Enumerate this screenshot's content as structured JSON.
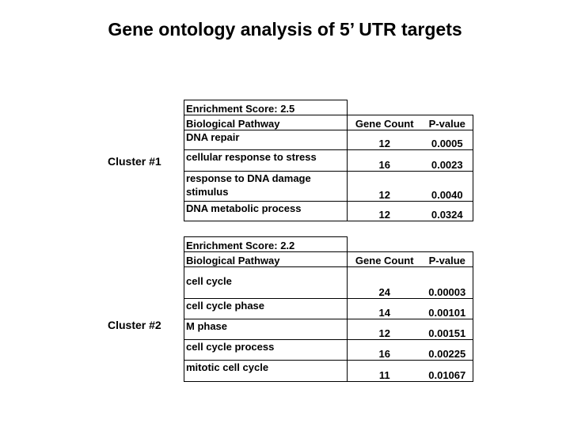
{
  "title": "Gene ontology analysis of 5’ UTR targets",
  "headers": {
    "pathway": "Biological Pathway",
    "gene_count": "Gene Count",
    "p_value": "P-value"
  },
  "clusters": [
    {
      "label": "Cluster #1",
      "enrichment": "Enrichment Score: 2.5",
      "rows": [
        {
          "pathway": "DNA repair",
          "count": "12",
          "p": "0.0005"
        },
        {
          "pathway": "cellular response to stress",
          "count": "16",
          "p": "0.0023"
        },
        {
          "pathway": "response to DNA damage stimulus",
          "count": "12",
          "p": "0.0040"
        },
        {
          "pathway": "DNA metabolic process",
          "count": "12",
          "p": "0.0324"
        }
      ]
    },
    {
      "label": "Cluster #2",
      "enrichment": "Enrichment Score: 2.2",
      "rows": [
        {
          "pathway": "cell cycle",
          "count": "24",
          "p": "0.00003"
        },
        {
          "pathway": "cell cycle phase",
          "count": "14",
          "p": "0.00101"
        },
        {
          "pathway": "M phase",
          "count": "12",
          "p": "0.00151"
        },
        {
          "pathway": "cell cycle process",
          "count": "16",
          "p": "0.00225"
        },
        {
          "pathway": "mitotic cell cycle",
          "count": "11",
          "p": "0.01067"
        }
      ]
    }
  ]
}
